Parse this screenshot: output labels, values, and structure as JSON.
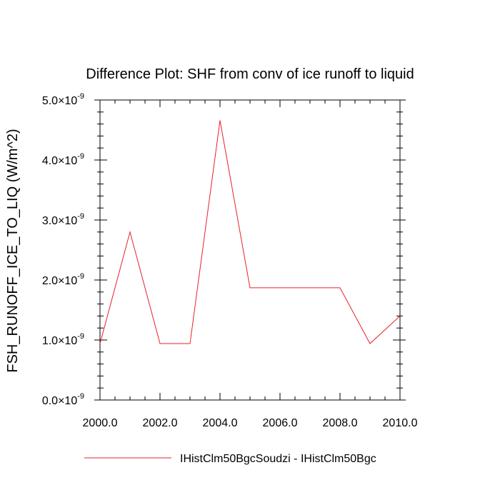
{
  "chart_data": {
    "type": "line",
    "title": "Difference Plot: SHF from conv of ice runoff to liquid",
    "xlabel": "",
    "ylabel": "FSH_RUNOFF_ICE_TO_LIQ  (W/m^2)",
    "xlim": [
      2000,
      2010
    ],
    "ylim": [
      0,
      5e-09
    ],
    "x_ticks": [
      {
        "value": 2000,
        "label": "2000.0"
      },
      {
        "value": 2002,
        "label": "2002.0"
      },
      {
        "value": 2004,
        "label": "2004.0"
      },
      {
        "value": 2006,
        "label": "2006.0"
      },
      {
        "value": 2008,
        "label": "2008.0"
      },
      {
        "value": 2010,
        "label": "2010.0"
      }
    ],
    "y_ticks": [
      {
        "value": 0.0,
        "mantissa": "0.0",
        "exponent": "-9"
      },
      {
        "value": 1e-09,
        "mantissa": "1.0",
        "exponent": "-9"
      },
      {
        "value": 2e-09,
        "mantissa": "2.0",
        "exponent": "-9"
      },
      {
        "value": 3e-09,
        "mantissa": "3.0",
        "exponent": "-9"
      },
      {
        "value": 4e-09,
        "mantissa": "4.0",
        "exponent": "-9"
      },
      {
        "value": 5e-09,
        "mantissa": "5.0",
        "exponent": "-9"
      }
    ],
    "grid": false,
    "legend_position": "bottom",
    "series": [
      {
        "name": "IHistClm50BgcSoudzi - IHistClm50Bgc",
        "color": "#e8202a",
        "x": [
          2000,
          2001,
          2002,
          2003,
          2004,
          2005,
          2006,
          2007,
          2008,
          2009,
          2010
        ],
        "y": [
          9.4e-10,
          2.8e-09,
          9.4e-10,
          9.4e-10,
          4.66e-09,
          1.87e-09,
          1.87e-09,
          1.87e-09,
          1.87e-09,
          9.4e-10,
          1.4e-09
        ]
      }
    ]
  }
}
